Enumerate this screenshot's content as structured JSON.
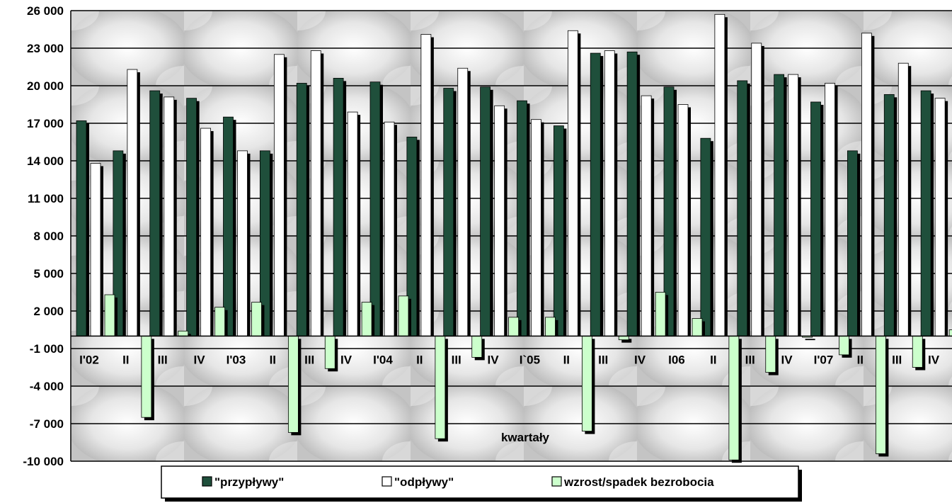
{
  "chart_data": {
    "type": "bar",
    "xlabel": "kwartały",
    "ylabel": "",
    "ylim": [
      -10000,
      26000
    ],
    "yticks": [
      26000,
      23000,
      20000,
      17000,
      14000,
      11000,
      8000,
      5000,
      2000,
      -1000,
      -4000,
      -7000,
      -10000
    ],
    "ytick_labels": [
      "26 000",
      "23 000",
      "20 000",
      "17 000",
      "14 000",
      "11 000",
      "8 000",
      "5 000",
      "2 000",
      "-1 000",
      "-4 000",
      "-7 000",
      "-10 000"
    ],
    "grid": true,
    "legend_position": "bottom",
    "categories": [
      "I'02",
      "II",
      "III",
      "IV",
      "I'03",
      "II",
      "III",
      "IV",
      "I'04",
      "II",
      "III",
      "IV",
      "I`05",
      "II",
      "III",
      "IV",
      "I06",
      "II",
      "III",
      "IV",
      "I'07",
      "II",
      "III",
      "IV"
    ],
    "series": [
      {
        "name": "\"przypływy\"",
        "color": "#1f4f3b",
        "values": [
          17200,
          14800,
          19600,
          19000,
          17500,
          14800,
          20200,
          20600,
          20300,
          15900,
          19800,
          19900,
          18800,
          16800,
          22600,
          22700,
          19900,
          15800,
          20400,
          20900,
          18700,
          14800,
          19300,
          19600
        ]
      },
      {
        "name": "\"odpływy\"",
        "color": "#ffffff",
        "values": [
          13800,
          21300,
          19100,
          16600,
          14800,
          22500,
          22800,
          17900,
          17100,
          24100,
          21400,
          18400,
          17300,
          24400,
          22800,
          19200,
          18500,
          25700,
          23400,
          20900,
          20200,
          24200,
          21800,
          19000
        ]
      },
      {
        "name": "wzrost/spadek bezrobocia",
        "color": "#ccffcc",
        "values": [
          3300,
          -6500,
          400,
          2300,
          2700,
          -7700,
          -2600,
          2700,
          3200,
          -8200,
          -1700,
          1500,
          1500,
          -7600,
          -300,
          3500,
          1400,
          -9900,
          -2900,
          -100,
          -1500,
          -9400,
          -2500,
          500
        ]
      }
    ]
  }
}
